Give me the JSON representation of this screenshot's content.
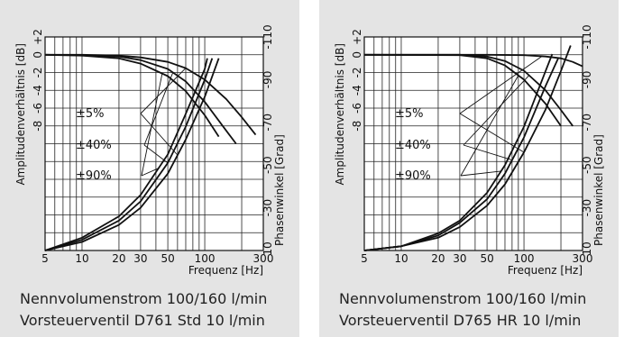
{
  "chart_data": [
    {
      "type": "line",
      "x_axis": {
        "label": "Frequenz [Hz]",
        "scale": "log",
        "range": [
          5,
          300
        ],
        "tick_labels": [
          "5",
          "10",
          "20",
          "30",
          "50",
          "100",
          "300"
        ],
        "tick_values": [
          5,
          10,
          20,
          30,
          50,
          100,
          300
        ]
      },
      "y_axis_left": {
        "label": "Amplitudenverhältnis [dB]",
        "range": [
          -22,
          2
        ],
        "tick_labels": [
          "+2",
          "0",
          "-2",
          "-4",
          "-6",
          "-8"
        ],
        "tick_values": [
          2,
          0,
          -2,
          -4,
          -6,
          -8
        ]
      },
      "y_axis_right": {
        "label": "Phasenwinkel [Grad]",
        "range": [
          -10,
          -110
        ],
        "tick_labels": [
          "-10",
          "-30",
          "-50",
          "-70",
          "-90",
          "-110"
        ],
        "tick_values": [
          -10,
          -30,
          -50,
          -70,
          -90,
          -110
        ]
      },
      "grid": true,
      "legend_labels": [
        "±5%",
        "±40%",
        "±90%"
      ],
      "series": [
        {
          "name": "±5%",
          "points": [
            [
              5,
              0
            ],
            [
              10,
              0
            ],
            [
              20,
              -0.1
            ],
            [
              30,
              -0.3
            ],
            [
              50,
              -0.8
            ],
            [
              70,
              -1.5
            ],
            [
              100,
              -2.8
            ],
            [
              150,
              -5
            ],
            [
              200,
              -7
            ],
            [
              260,
              -9
            ]
          ]
        },
        {
          "name": "±40%",
          "points": [
            [
              5,
              0
            ],
            [
              10,
              -0.05
            ],
            [
              20,
              -0.2
            ],
            [
              30,
              -0.6
            ],
            [
              50,
              -1.6
            ],
            [
              70,
              -3
            ],
            [
              100,
              -5.3
            ],
            [
              140,
              -8
            ],
            [
              180,
              -10
            ]
          ]
        },
        {
          "name": "±90%",
          "points": [
            [
              5,
              0
            ],
            [
              10,
              -0.1
            ],
            [
              20,
              -0.4
            ],
            [
              30,
              -1
            ],
            [
              50,
              -2.4
            ],
            [
              70,
              -4.1
            ],
            [
              100,
              -6.8
            ],
            [
              130,
              -9.2
            ]
          ]
        },
        {
          "name": "±5%",
          "axis": "phase",
          "points": [
            [
              5,
              -10
            ],
            [
              10,
              -14
            ],
            [
              20,
              -22
            ],
            [
              30,
              -30
            ],
            [
              50,
              -46
            ],
            [
              70,
              -62
            ],
            [
              100,
              -82
            ],
            [
              130,
              -100
            ]
          ]
        },
        {
          "name": "±40%",
          "axis": "phase",
          "points": [
            [
              5,
              -10
            ],
            [
              10,
              -15
            ],
            [
              20,
              -24
            ],
            [
              30,
              -33
            ],
            [
              50,
              -51
            ],
            [
              70,
              -68
            ],
            [
              100,
              -90
            ],
            [
              115,
              -100
            ]
          ]
        },
        {
          "name": "±90%",
          "axis": "phase",
          "points": [
            [
              5,
              -10
            ],
            [
              10,
              -16
            ],
            [
              20,
              -26
            ],
            [
              30,
              -36
            ],
            [
              50,
              -55
            ],
            [
              70,
              -74
            ],
            [
              100,
              -95
            ],
            [
              105,
              -100
            ]
          ]
        }
      ],
      "caption_lines": [
        "Nennvolumenstrom 100/160 l/min",
        "Vorsteuerventil D761 Std 10 l/min"
      ]
    },
    {
      "type": "line",
      "x_axis": {
        "label": "Frequenz [Hz]",
        "scale": "log",
        "range": [
          5,
          300
        ],
        "tick_labels": [
          "5",
          "10",
          "20",
          "30",
          "50",
          "100",
          "300"
        ],
        "tick_values": [
          5,
          10,
          20,
          30,
          50,
          100,
          300
        ]
      },
      "y_axis_left": {
        "label": "Amplitudenverhältnis [dB]",
        "range": [
          -22,
          2
        ],
        "tick_labels": [
          "+2",
          "0",
          "-2",
          "-4",
          "-6",
          "-8"
        ],
        "tick_values": [
          2,
          0,
          -2,
          -4,
          -6,
          -8
        ]
      },
      "y_axis_right": {
        "label": "Phasenwinkel [Grad]",
        "range": [
          -10,
          -110
        ],
        "tick_labels": [
          "-10",
          "-30",
          "-50",
          "-70",
          "-90",
          "-110"
        ],
        "tick_values": [
          -10,
          -30,
          -50,
          -70,
          -90,
          -110
        ]
      },
      "grid": true,
      "legend_labels": [
        "±5%",
        "±40%",
        "±90%"
      ],
      "series": [
        {
          "name": "±5%",
          "points": [
            [
              5,
              0
            ],
            [
              50,
              0
            ],
            [
              100,
              -0.05
            ],
            [
              150,
              -0.2
            ],
            [
              200,
              -0.4
            ],
            [
              250,
              -0.8
            ],
            [
              300,
              -1.3
            ]
          ]
        },
        {
          "name": "±40%",
          "points": [
            [
              5,
              0
            ],
            [
              30,
              0
            ],
            [
              50,
              -0.2
            ],
            [
              70,
              -0.7
            ],
            [
              100,
              -1.8
            ],
            [
              150,
              -4
            ],
            [
              200,
              -6.2
            ],
            [
              250,
              -8
            ]
          ]
        },
        {
          "name": "±90%",
          "points": [
            [
              5,
              0
            ],
            [
              30,
              -0.05
            ],
            [
              50,
              -0.4
            ],
            [
              70,
              -1.2
            ],
            [
              100,
              -2.8
            ],
            [
              150,
              -5.5
            ],
            [
              200,
              -8
            ]
          ]
        },
        {
          "name": "±5%",
          "axis": "phase",
          "points": [
            [
              5,
              -10
            ],
            [
              10,
              -12
            ],
            [
              20,
              -16
            ],
            [
              30,
              -21
            ],
            [
              50,
              -31
            ],
            [
              70,
              -41
            ],
            [
              100,
              -56
            ],
            [
              150,
              -76
            ],
            [
              200,
              -94
            ],
            [
              240,
              -106
            ]
          ]
        },
        {
          "name": "±40%",
          "axis": "phase",
          "points": [
            [
              5,
              -10
            ],
            [
              10,
              -12
            ],
            [
              20,
              -17
            ],
            [
              30,
              -23
            ],
            [
              50,
              -34
            ],
            [
              70,
              -46
            ],
            [
              100,
              -63
            ],
            [
              150,
              -87
            ],
            [
              190,
              -100
            ]
          ]
        },
        {
          "name": "±90%",
          "axis": "phase",
          "points": [
            [
              5,
              -10
            ],
            [
              10,
              -12
            ],
            [
              20,
              -18
            ],
            [
              30,
              -24
            ],
            [
              50,
              -37
            ],
            [
              70,
              -50
            ],
            [
              100,
              -68
            ],
            [
              150,
              -94
            ],
            [
              170,
              -102
            ]
          ]
        }
      ],
      "caption_lines": [
        "Nennvolumenstrom 100/160 l/min",
        "Vorsteuerventil D765 HR 10 l/min"
      ]
    }
  ]
}
